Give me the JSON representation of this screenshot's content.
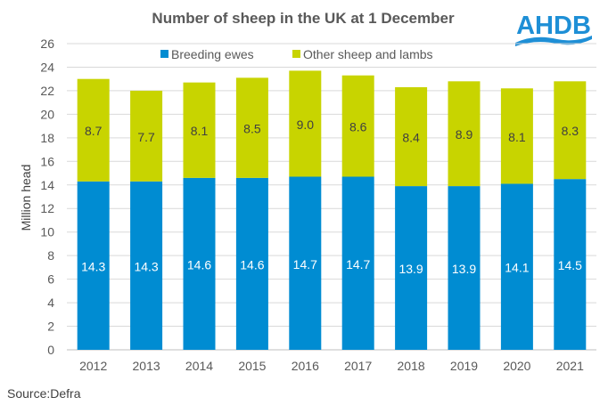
{
  "chart_data": {
    "type": "bar",
    "stacked": true,
    "title": "Number of sheep in the UK at 1 December",
    "xlabel": "",
    "ylabel": "Million head",
    "ylim": [
      0,
      26
    ],
    "yticks": [
      0,
      2,
      4,
      6,
      8,
      10,
      12,
      14,
      16,
      18,
      20,
      22,
      24,
      26
    ],
    "grid": true,
    "legend_position": "top",
    "categories": [
      "2012",
      "2013",
      "2014",
      "2015",
      "2016",
      "2017",
      "2018",
      "2019",
      "2020",
      "2021"
    ],
    "series": [
      {
        "name": "Breeding ewes",
        "color": "#008CD2",
        "values": [
          14.3,
          14.3,
          14.6,
          14.6,
          14.7,
          14.7,
          13.9,
          13.9,
          14.1,
          14.5
        ],
        "labels": [
          "14.3",
          "14.3",
          "14.6",
          "14.6",
          "14.7",
          "14.7",
          "13.9",
          "13.9",
          "14.1",
          "14.5"
        ]
      },
      {
        "name": "Other sheep and lambs",
        "color": "#C8D400",
        "values": [
          8.7,
          7.7,
          8.1,
          8.5,
          9.0,
          8.6,
          8.4,
          8.9,
          8.1,
          8.3
        ],
        "labels": [
          "8.7",
          "7.7",
          "8.1",
          "8.5",
          "9.0",
          "8.6",
          "8.4",
          "8.9",
          "8.1",
          "8.3"
        ]
      }
    ]
  },
  "source": "Source:Defra",
  "logo": {
    "text": "AHDB",
    "color": "#1E8FD6"
  }
}
